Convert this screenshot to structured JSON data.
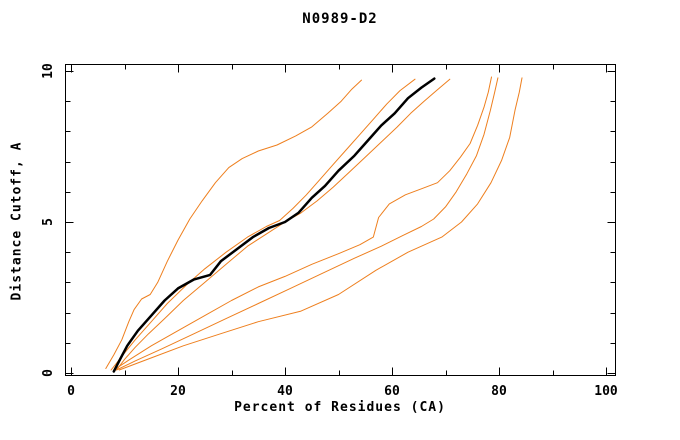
{
  "title": "N0989-D2",
  "colors": {
    "background": "#ffffff",
    "axis": "#000000",
    "curve_orange": "#ee7f1e",
    "curve_black": "#000000"
  },
  "chart_data": {
    "type": "line",
    "title": "N0989-D2",
    "xlabel": "Percent of Residues (CA)",
    "ylabel": "Distance Cutoff, A",
    "xlim": [
      0,
      100
    ],
    "ylim": [
      0,
      10
    ],
    "x_major_ticks": [
      0,
      20,
      40,
      60,
      80,
      100
    ],
    "x_minor_step": 10,
    "y_major_ticks": [
      0,
      5,
      10
    ],
    "y_minor_step": 1,
    "grid": false,
    "legend": null,
    "frame": "box-with-mirrored-inward-ticks",
    "series": [
      {
        "name": "orange-model-1",
        "color": "#ee7f1e",
        "width": 1,
        "points": [
          [
            6.5,
            0.15
          ],
          [
            8,
            0.6
          ],
          [
            9.5,
            1.1
          ],
          [
            10.8,
            1.7
          ],
          [
            11.8,
            2.1
          ],
          [
            13.2,
            2.45
          ],
          [
            14.8,
            2.6
          ],
          [
            16.2,
            3.0
          ],
          [
            18,
            3.7
          ],
          [
            20,
            4.4
          ],
          [
            22.2,
            5.1
          ],
          [
            24.5,
            5.7
          ],
          [
            27,
            6.3
          ],
          [
            29.5,
            6.8
          ],
          [
            32,
            7.1
          ],
          [
            35,
            7.35
          ],
          [
            38.5,
            7.55
          ],
          [
            42,
            7.85
          ],
          [
            45,
            8.15
          ],
          [
            48,
            8.6
          ],
          [
            50.5,
            9.0
          ],
          [
            52.5,
            9.4
          ],
          [
            54.3,
            9.7
          ]
        ]
      },
      {
        "name": "orange-model-2",
        "color": "#ee7f1e",
        "width": 1,
        "points": [
          [
            7.5,
            0.1
          ],
          [
            9.5,
            0.55
          ],
          [
            12,
            1.1
          ],
          [
            15,
            1.7
          ],
          [
            18,
            2.3
          ],
          [
            21.5,
            2.9
          ],
          [
            25,
            3.45
          ],
          [
            29,
            4.0
          ],
          [
            33,
            4.5
          ],
          [
            36.5,
            4.85
          ],
          [
            39,
            5.05
          ],
          [
            41.5,
            5.45
          ],
          [
            44,
            5.9
          ],
          [
            46.5,
            6.4
          ],
          [
            49,
            6.9
          ],
          [
            51.5,
            7.4
          ],
          [
            54,
            7.9
          ],
          [
            56.5,
            8.4
          ],
          [
            59,
            8.9
          ],
          [
            61.5,
            9.35
          ],
          [
            64.3,
            9.73
          ]
        ]
      },
      {
        "name": "orange-model-3",
        "color": "#ee7f1e",
        "width": 1,
        "points": [
          [
            8.5,
            0.1
          ],
          [
            10,
            0.45
          ],
          [
            12,
            0.85
          ],
          [
            14.5,
            1.3
          ],
          [
            17.5,
            1.8
          ],
          [
            21,
            2.4
          ],
          [
            25,
            3.0
          ],
          [
            29,
            3.6
          ],
          [
            33,
            4.2
          ],
          [
            36.5,
            4.6
          ],
          [
            40,
            5.0
          ],
          [
            43,
            5.3
          ],
          [
            46,
            5.7
          ],
          [
            49,
            6.15
          ],
          [
            52,
            6.65
          ],
          [
            55,
            7.15
          ],
          [
            58,
            7.65
          ],
          [
            61,
            8.15
          ],
          [
            63.5,
            8.6
          ],
          [
            66,
            9.0
          ],
          [
            68.3,
            9.35
          ],
          [
            70.8,
            9.73
          ]
        ]
      },
      {
        "name": "orange-model-4",
        "color": "#ee7f1e",
        "width": 1,
        "points": [
          [
            8,
            0.1
          ],
          [
            11,
            0.45
          ],
          [
            15,
            0.9
          ],
          [
            20,
            1.4
          ],
          [
            25,
            1.9
          ],
          [
            30,
            2.4
          ],
          [
            35,
            2.85
          ],
          [
            40,
            3.2
          ],
          [
            45,
            3.6
          ],
          [
            50,
            3.95
          ],
          [
            54,
            4.25
          ],
          [
            56.5,
            4.5
          ],
          [
            57.5,
            5.15
          ],
          [
            59.5,
            5.6
          ],
          [
            62.5,
            5.9
          ],
          [
            65.5,
            6.1
          ],
          [
            68.5,
            6.3
          ],
          [
            70.8,
            6.7
          ],
          [
            72.8,
            7.15
          ],
          [
            74.6,
            7.6
          ],
          [
            76,
            8.2
          ],
          [
            77.2,
            8.8
          ],
          [
            78,
            9.3
          ],
          [
            78.6,
            9.8
          ]
        ]
      },
      {
        "name": "orange-model-5",
        "color": "#ee7f1e",
        "width": 1,
        "points": [
          [
            8.5,
            0.1
          ],
          [
            12,
            0.4
          ],
          [
            17,
            0.8
          ],
          [
            23,
            1.3
          ],
          [
            29,
            1.8
          ],
          [
            35,
            2.3
          ],
          [
            41,
            2.8
          ],
          [
            47,
            3.3
          ],
          [
            53,
            3.8
          ],
          [
            58,
            4.2
          ],
          [
            62,
            4.55
          ],
          [
            65.5,
            4.85
          ],
          [
            67.8,
            5.1
          ],
          [
            70,
            5.5
          ],
          [
            72,
            6.0
          ],
          [
            74,
            6.6
          ],
          [
            75.8,
            7.2
          ],
          [
            77.2,
            7.9
          ],
          [
            78.4,
            8.7
          ],
          [
            79.2,
            9.3
          ],
          [
            79.8,
            9.77
          ]
        ]
      },
      {
        "name": "orange-model-6",
        "color": "#ee7f1e",
        "width": 1,
        "points": [
          [
            9,
            0.1
          ],
          [
            15,
            0.5
          ],
          [
            21,
            0.9
          ],
          [
            28,
            1.3
          ],
          [
            35,
            1.7
          ],
          [
            43,
            2.05
          ],
          [
            50,
            2.6
          ],
          [
            57,
            3.4
          ],
          [
            63,
            4.0
          ],
          [
            69.3,
            4.5
          ],
          [
            73,
            5.0
          ],
          [
            76,
            5.6
          ],
          [
            78.5,
            6.3
          ],
          [
            80.5,
            7.05
          ],
          [
            82,
            7.8
          ],
          [
            83,
            8.7
          ],
          [
            83.8,
            9.3
          ],
          [
            84.3,
            9.77
          ]
        ]
      },
      {
        "name": "black-reference",
        "color": "#000000",
        "width": 2.5,
        "points": [
          [
            8,
            0.05
          ],
          [
            9,
            0.4
          ],
          [
            10.5,
            0.9
          ],
          [
            12.5,
            1.4
          ],
          [
            15,
            1.9
          ],
          [
            17.5,
            2.4
          ],
          [
            20,
            2.8
          ],
          [
            23,
            3.1
          ],
          [
            26,
            3.25
          ],
          [
            28,
            3.7
          ],
          [
            31,
            4.1
          ],
          [
            34,
            4.5
          ],
          [
            37,
            4.8
          ],
          [
            40,
            5.0
          ],
          [
            42.5,
            5.3
          ],
          [
            45,
            5.8
          ],
          [
            47.5,
            6.2
          ],
          [
            50,
            6.7
          ],
          [
            53,
            7.2
          ],
          [
            55.5,
            7.7
          ],
          [
            58,
            8.2
          ],
          [
            60.5,
            8.6
          ],
          [
            63,
            9.1
          ],
          [
            65.5,
            9.45
          ],
          [
            67.9,
            9.75
          ]
        ]
      }
    ]
  }
}
